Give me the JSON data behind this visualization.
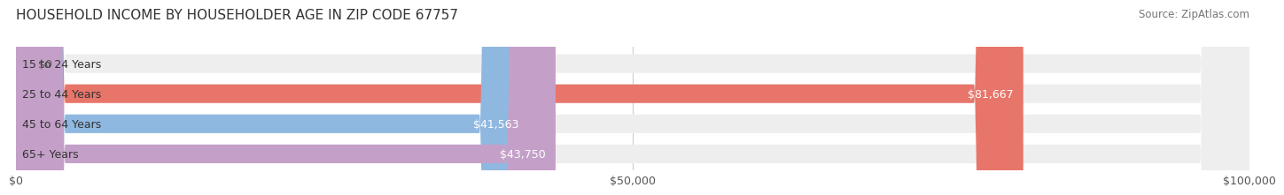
{
  "title": "HOUSEHOLD INCOME BY HOUSEHOLDER AGE IN ZIP CODE 67757",
  "source": "Source: ZipAtlas.com",
  "categories": [
    "15 to 24 Years",
    "25 to 44 Years",
    "45 to 64 Years",
    "65+ Years"
  ],
  "values": [
    0,
    81667,
    41563,
    43750
  ],
  "bar_colors": [
    "#f5d08b",
    "#e8756a",
    "#8fb8e0",
    "#c4a0c8"
  ],
  "bar_bg_color": "#eeeeee",
  "value_labels": [
    "$0",
    "$81,667",
    "$41,563",
    "$43,750"
  ],
  "xmax": 100000,
  "xticks": [
    0,
    50000,
    100000
  ],
  "xtick_labels": [
    "$0",
    "$50,000",
    "$100,000"
  ],
  "background_color": "#ffffff",
  "title_fontsize": 11,
  "source_fontsize": 8.5,
  "label_fontsize": 9,
  "tick_fontsize": 9
}
